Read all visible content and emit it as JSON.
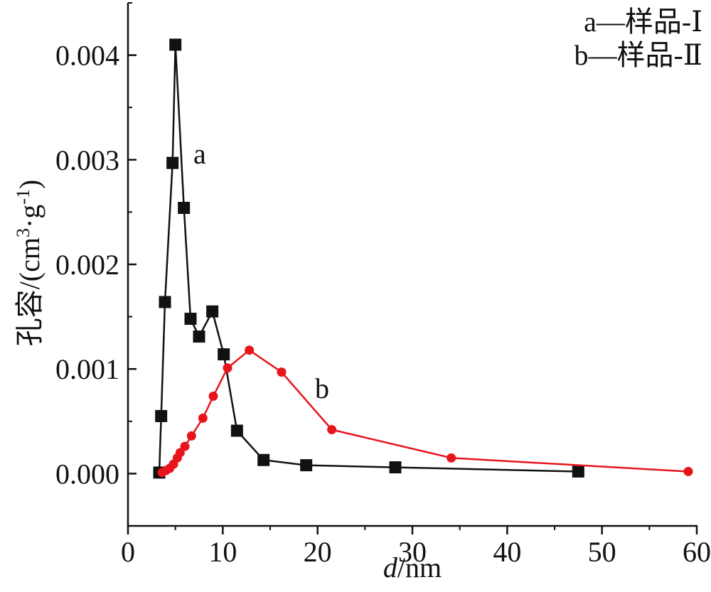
{
  "chart_data": {
    "type": "line",
    "title": "",
    "xlabel_italic": "d",
    "xlabel_unit": "/nm",
    "ylabel_main": "孔容/(cm",
    "ylabel_sup1": "3",
    "ylabel_mid": "·g",
    "ylabel_sup2": "-1",
    "ylabel_end": ")",
    "xlim": [
      0,
      60
    ],
    "ylim": [
      -0.0005,
      0.0045
    ],
    "xticks": [
      0,
      10,
      20,
      30,
      40,
      50,
      60
    ],
    "xtick_labels": [
      "0",
      "10",
      "20",
      "30",
      "40",
      "50",
      "60"
    ],
    "yticks": [
      0.0,
      0.001,
      0.002,
      0.003,
      0.004
    ],
    "ytick_labels": [
      "0.000",
      "0.001",
      "0.002",
      "0.003",
      "0.004"
    ],
    "grid": false,
    "legend_position": "top-right",
    "legend": [
      "a—样品-Ⅰ",
      "b—样品-Ⅱ"
    ],
    "series": [
      {
        "tag": "a",
        "color": "#111111",
        "marker": "square",
        "x": [
          3.3,
          3.5,
          3.9,
          4.7,
          5.0,
          5.9,
          6.6,
          7.5,
          8.9,
          10.1,
          11.5,
          14.3,
          18.8,
          28.2,
          47.5
        ],
        "y": [
          1e-05,
          0.00055,
          0.00164,
          0.00297,
          0.0041,
          0.00254,
          0.00148,
          0.00131,
          0.00155,
          0.00114,
          0.00041,
          0.00013,
          8e-05,
          6e-05,
          2e-05
        ]
      },
      {
        "tag": "b",
        "color": "#e8141c",
        "marker": "circle",
        "x": [
          3.6,
          4.0,
          4.4,
          4.8,
          5.2,
          5.5,
          6.0,
          6.7,
          7.9,
          9.0,
          10.5,
          12.8,
          16.2,
          21.5,
          34.1,
          59.1
        ],
        "y": [
          1e-05,
          3e-05,
          5e-05,
          9e-05,
          0.00015,
          0.0002,
          0.00026,
          0.00036,
          0.00053,
          0.00074,
          0.00101,
          0.00118,
          0.00097,
          0.00042,
          0.00015,
          2e-05
        ]
      }
    ]
  }
}
